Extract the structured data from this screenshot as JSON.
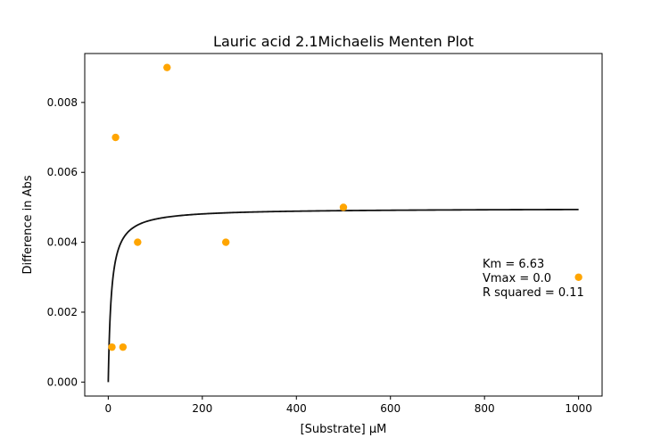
{
  "chart_data": {
    "type": "scatter",
    "title": "Lauric acid 2.1Michaelis Menten Plot",
    "xlabel": "[Substrate] µM",
    "ylabel": "Difference in Abs",
    "xlim": [
      -50,
      1050
    ],
    "ylim": [
      -0.0004,
      0.0094
    ],
    "xticks": [
      0,
      200,
      400,
      600,
      800,
      1000
    ],
    "xtick_labels": [
      "0",
      "200",
      "400",
      "600",
      "800",
      "1000"
    ],
    "yticks": [
      0.0,
      0.002,
      0.004,
      0.006,
      0.008
    ],
    "ytick_labels": [
      "0.000",
      "0.002",
      "0.004",
      "0.006",
      "0.008"
    ],
    "grid": false,
    "points": {
      "color": "#ffa500",
      "x": [
        7.8,
        15.6,
        31.25,
        62.5,
        125,
        250,
        500,
        1000
      ],
      "y": [
        0.001,
        0.007,
        0.001,
        0.004,
        0.009,
        0.004,
        0.005,
        0.003
      ]
    },
    "fit_curve": {
      "color": "#111111",
      "model": "michaelis-menten",
      "km": 6.63,
      "vmax": 0.00497,
      "x_range": [
        0,
        1000
      ]
    },
    "annotation": [
      "Km = 6.63",
      "Vmax = 0.0",
      "R squared = 0.11"
    ]
  }
}
